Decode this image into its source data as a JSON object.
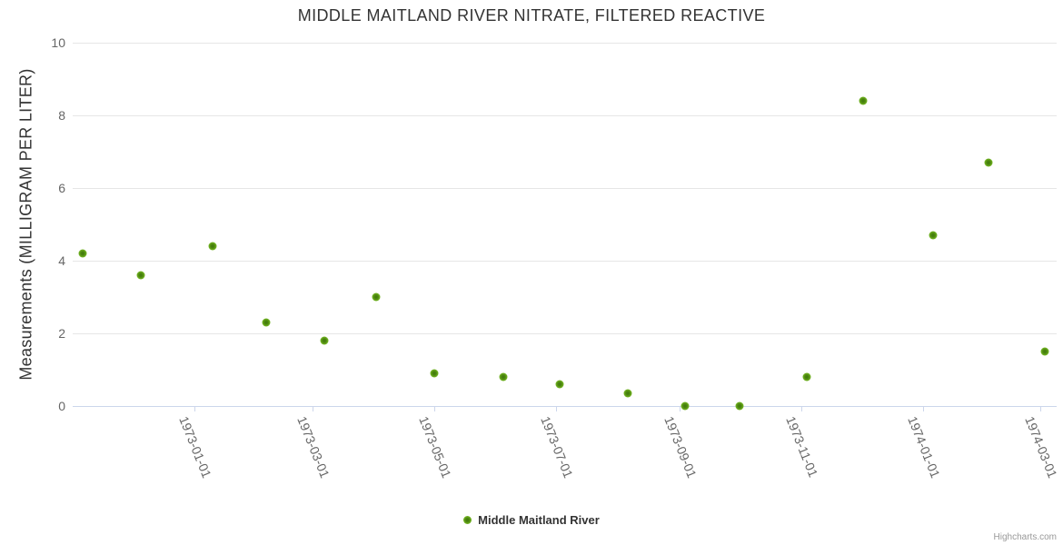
{
  "header": {
    "title": "MIDDLE MAITLAND RIVER NITRATE, FILTERED REACTIVE"
  },
  "legend": {
    "series_label": "Middle Maitland River"
  },
  "credits": {
    "label": "Highcharts.com"
  },
  "colors": {
    "marker_outer": "#8cc83c",
    "marker_mid": "#6dae1f",
    "marker_inner": "#3f7a0d",
    "gridline": "#e6e6e6",
    "axis_line": "#ccd6eb",
    "title_text": "#333333",
    "tick_label_text": "#666666",
    "legend_text": "#333333",
    "credits_text": "#999999"
  },
  "chart_data": {
    "type": "scatter",
    "title": "MIDDLE MAITLAND RIVER NITRATE, FILTERED REACTIVE",
    "xlabel": "",
    "ylabel": "Measurements (MILLIGRAM PER LITER)",
    "ylim": [
      0,
      10
    ],
    "y_ticks": [
      0,
      2,
      4,
      6,
      8,
      10
    ],
    "xlim": [
      "1972-11-01",
      "1974-03-09"
    ],
    "x_ticks": [
      "1973-01-01",
      "1973-03-01",
      "1973-05-01",
      "1973-07-01",
      "1973-09-01",
      "1973-11-01",
      "1974-01-01",
      "1974-03-01"
    ],
    "x_tick_rotation_deg": 68,
    "grid": true,
    "legend_position": "bottom-center",
    "series": [
      {
        "name": "Middle Maitland River",
        "points": [
          {
            "date": "1972-11-06",
            "value": 4.2
          },
          {
            "date": "1972-12-05",
            "value": 3.6
          },
          {
            "date": "1973-01-10",
            "value": 4.4
          },
          {
            "date": "1973-02-06",
            "value": 2.3
          },
          {
            "date": "1973-03-07",
            "value": 1.8
          },
          {
            "date": "1973-04-02",
            "value": 3.0
          },
          {
            "date": "1973-05-01",
            "value": 0.9
          },
          {
            "date": "1973-06-05",
            "value": 0.8
          },
          {
            "date": "1973-07-03",
            "value": 0.6
          },
          {
            "date": "1973-08-06",
            "value": 0.35
          },
          {
            "date": "1973-09-04",
            "value": 0.0
          },
          {
            "date": "1973-10-01",
            "value": 0.0
          },
          {
            "date": "1973-11-04",
            "value": 0.8
          },
          {
            "date": "1973-12-02",
            "value": 8.4
          },
          {
            "date": "1974-01-06",
            "value": 4.7
          },
          {
            "date": "1974-02-03",
            "value": 6.7
          },
          {
            "date": "1974-03-03",
            "value": 1.5
          }
        ]
      }
    ]
  }
}
